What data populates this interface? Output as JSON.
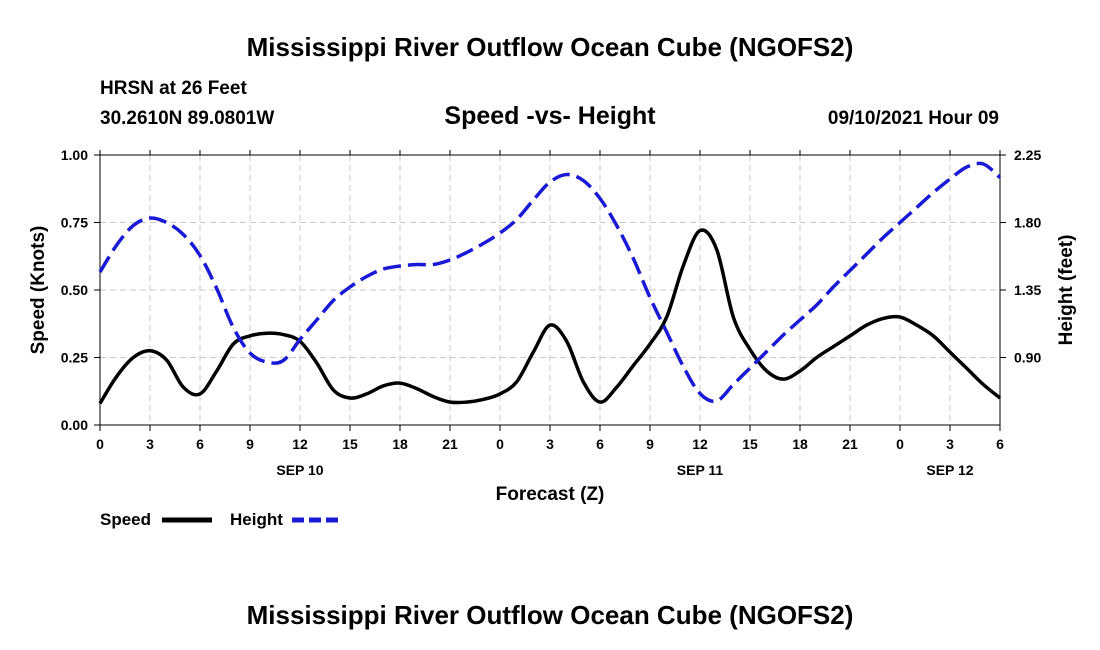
{
  "header": {
    "main_title": "Mississippi River Outflow Ocean Cube (NGOFS2)",
    "station": "HRSN at 26 Feet",
    "location": "30.2610N  89.0801W",
    "chart_title": "Speed -vs- Height",
    "forecast_time": "09/10/2021 Hour 09"
  },
  "footer": {
    "title": "Mississippi River Outflow Ocean Cube (NGOFS2)"
  },
  "legend": {
    "speed_label": "Speed",
    "height_label": "Height"
  },
  "colors": {
    "speed": "#000000",
    "height": "#1a1ad6",
    "grid": "#c8c8c8"
  },
  "chart_data": {
    "type": "line",
    "title": "Speed -vs- Height",
    "xlabel": "Forecast (Z)",
    "ylabel": "Speed (Knots)",
    "y2label": "Height (feet)",
    "xlim": [
      0,
      54
    ],
    "ylim": [
      0,
      1.0
    ],
    "y2lim": [
      0.45,
      2.25
    ],
    "x_ticks": [
      0,
      3,
      6,
      9,
      12,
      15,
      18,
      21,
      24,
      27,
      30,
      33,
      36,
      39,
      42,
      45,
      48,
      51,
      54
    ],
    "x_tick_labels": [
      "0",
      "3",
      "6",
      "9",
      "12",
      "15",
      "18",
      "21",
      "0",
      "3",
      "6",
      "9",
      "12",
      "15",
      "18",
      "21",
      "0",
      "3",
      "6"
    ],
    "y_ticks": [
      0,
      0.25,
      0.5,
      0.75,
      1.0
    ],
    "y_tick_labels": [
      "0.00",
      "0.25",
      "0.50",
      "0.75",
      "1.00"
    ],
    "y2_ticks": [
      0.9,
      1.35,
      1.8,
      2.25
    ],
    "y2_tick_labels": [
      "0.90",
      "1.35",
      "1.80",
      "2.25"
    ],
    "date_labels": [
      {
        "x": 12,
        "label": "SEP 10"
      },
      {
        "x": 36,
        "label": "SEP 11"
      },
      {
        "x": 51,
        "label": "SEP 12"
      }
    ],
    "grid": true,
    "series": [
      {
        "name": "Speed",
        "axis": "left",
        "style": "solid",
        "x": [
          0,
          1,
          2,
          3,
          4,
          5,
          6,
          7,
          8,
          9,
          10,
          11,
          12,
          13,
          14,
          15,
          16,
          17,
          18,
          19,
          20,
          21,
          22,
          23,
          24,
          25,
          26,
          27,
          28,
          29,
          30,
          31,
          32,
          33,
          34,
          35,
          36,
          37,
          38,
          39,
          40,
          41,
          42,
          43,
          44,
          45,
          46,
          47,
          48,
          49,
          50,
          51,
          52,
          53,
          54
        ],
        "values": [
          0.08,
          0.18,
          0.25,
          0.275,
          0.24,
          0.14,
          0.115,
          0.2,
          0.3,
          0.33,
          0.34,
          0.335,
          0.31,
          0.23,
          0.13,
          0.1,
          0.115,
          0.145,
          0.155,
          0.135,
          0.105,
          0.085,
          0.085,
          0.095,
          0.115,
          0.16,
          0.27,
          0.37,
          0.31,
          0.16,
          0.085,
          0.14,
          0.22,
          0.3,
          0.4,
          0.59,
          0.72,
          0.65,
          0.4,
          0.28,
          0.2,
          0.17,
          0.2,
          0.25,
          0.29,
          0.33,
          0.37,
          0.395,
          0.4,
          0.37,
          0.33,
          0.27,
          0.21,
          0.15,
          0.1
        ]
      },
      {
        "name": "Height",
        "axis": "right",
        "style": "dashed",
        "x": [
          0,
          1,
          2,
          3,
          4,
          5,
          6,
          7,
          8,
          9,
          10,
          11,
          12,
          13,
          14,
          15,
          16,
          17,
          18,
          19,
          20,
          21,
          22,
          23,
          24,
          25,
          26,
          27,
          28,
          29,
          30,
          31,
          32,
          33,
          34,
          35,
          36,
          37,
          38,
          39,
          40,
          41,
          42,
          43,
          44,
          45,
          46,
          47,
          48,
          49,
          50,
          51,
          52,
          53,
          54
        ],
        "values": [
          1.47,
          1.65,
          1.78,
          1.83,
          1.8,
          1.72,
          1.58,
          1.36,
          1.1,
          0.93,
          0.87,
          0.88,
          1.02,
          1.15,
          1.28,
          1.37,
          1.44,
          1.49,
          1.51,
          1.52,
          1.52,
          1.55,
          1.6,
          1.66,
          1.73,
          1.82,
          1.95,
          2.07,
          2.12,
          2.08,
          1.96,
          1.78,
          1.56,
          1.3,
          1.07,
          0.84,
          0.66,
          0.61,
          0.72,
          0.83,
          0.94,
          1.05,
          1.15,
          1.25,
          1.37,
          1.48,
          1.59,
          1.7,
          1.8,
          1.9,
          2.0,
          2.09,
          2.17,
          2.19,
          2.1
        ]
      }
    ]
  }
}
